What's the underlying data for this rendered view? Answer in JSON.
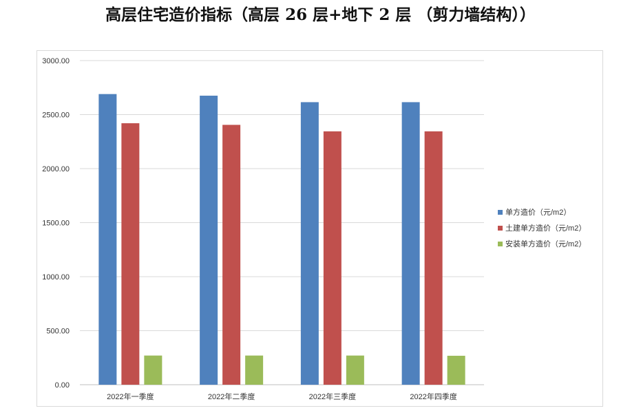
{
  "chart_data": {
    "type": "bar",
    "title": "高层住宅造价指标（高层 26 层+地下 2 层 （剪力墙结构））",
    "categories": [
      "2022年一季度",
      "2022年二季度",
      "2022年三季度",
      "2022年四季度"
    ],
    "series": [
      {
        "name": "单方造价（元/m2）",
        "color": "#4f81bd",
        "values": [
          2690,
          2675,
          2615,
          2615
        ]
      },
      {
        "name": "土建单方造价（元/m2）",
        "color": "#c0504d",
        "values": [
          2420,
          2405,
          2345,
          2345
        ]
      },
      {
        "name": "安装单方造价（元/m2）",
        "color": "#9bbb59",
        "values": [
          270,
          270,
          270,
          268
        ]
      }
    ],
    "ylim": [
      0,
      3000
    ],
    "yticks": [
      "0.00",
      "500.00",
      "1000.00",
      "1500.00",
      "2000.00",
      "2500.00",
      "3000.00"
    ],
    "grid": true,
    "legend": "right"
  }
}
